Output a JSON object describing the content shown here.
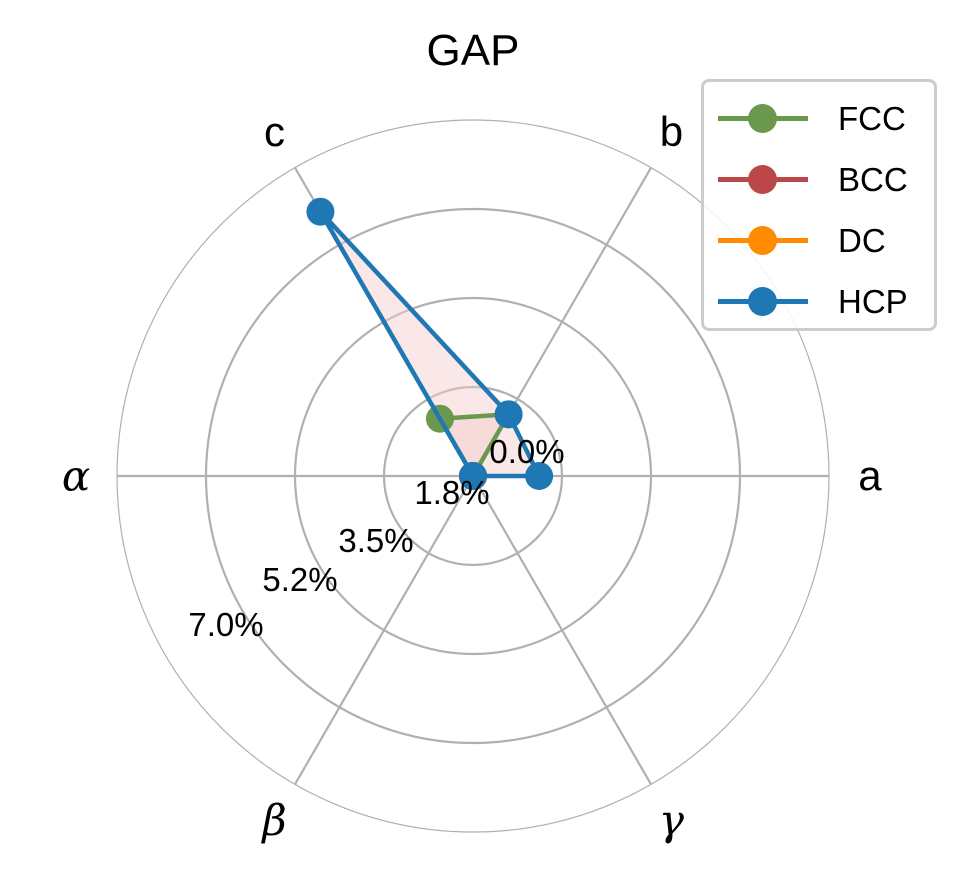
{
  "chart_data": {
    "type": "radar",
    "title": "GAP",
    "axes": [
      "a",
      "b",
      "c",
      "α",
      "β",
      "γ"
    ],
    "axis_angles_deg": [
      0,
      60,
      120,
      180,
      240,
      300
    ],
    "radial_ticks": [
      0.0,
      1.75,
      3.5,
      5.25,
      7.0
    ],
    "radial_tick_labels": [
      "0.0%",
      "1.8%",
      "3.5%",
      "5.2%",
      "7.0%"
    ],
    "rlim": [
      0,
      7.0
    ],
    "grid": true,
    "legend_position": "upper right",
    "series": [
      {
        "name": "FCC",
        "color": "#6a994e",
        "values": [
          0.0,
          1.4,
          1.3,
          0.0,
          0.0,
          0.0
        ]
      },
      {
        "name": "BCC",
        "color": "#bc4749",
        "values": [
          0.0,
          0.0,
          0.0,
          0.0,
          0.0,
          0.0
        ]
      },
      {
        "name": "DC",
        "color": "#ff8c00",
        "values": [
          0.0,
          0.0,
          0.0,
          0.0,
          0.0,
          0.0
        ]
      },
      {
        "name": "HCP",
        "color": "#1f77b4",
        "values": [
          1.3,
          1.4,
          6.0,
          0.0,
          0.0,
          0.0
        ]
      }
    ],
    "fill_color": "#f4cccc"
  },
  "legend": {
    "items": [
      {
        "label": "FCC",
        "color": "#6a994e"
      },
      {
        "label": "BCC",
        "color": "#bc4749"
      },
      {
        "label": "DC",
        "color": "#ff8c00"
      },
      {
        "label": "HCP",
        "color": "#1f77b4"
      }
    ]
  }
}
